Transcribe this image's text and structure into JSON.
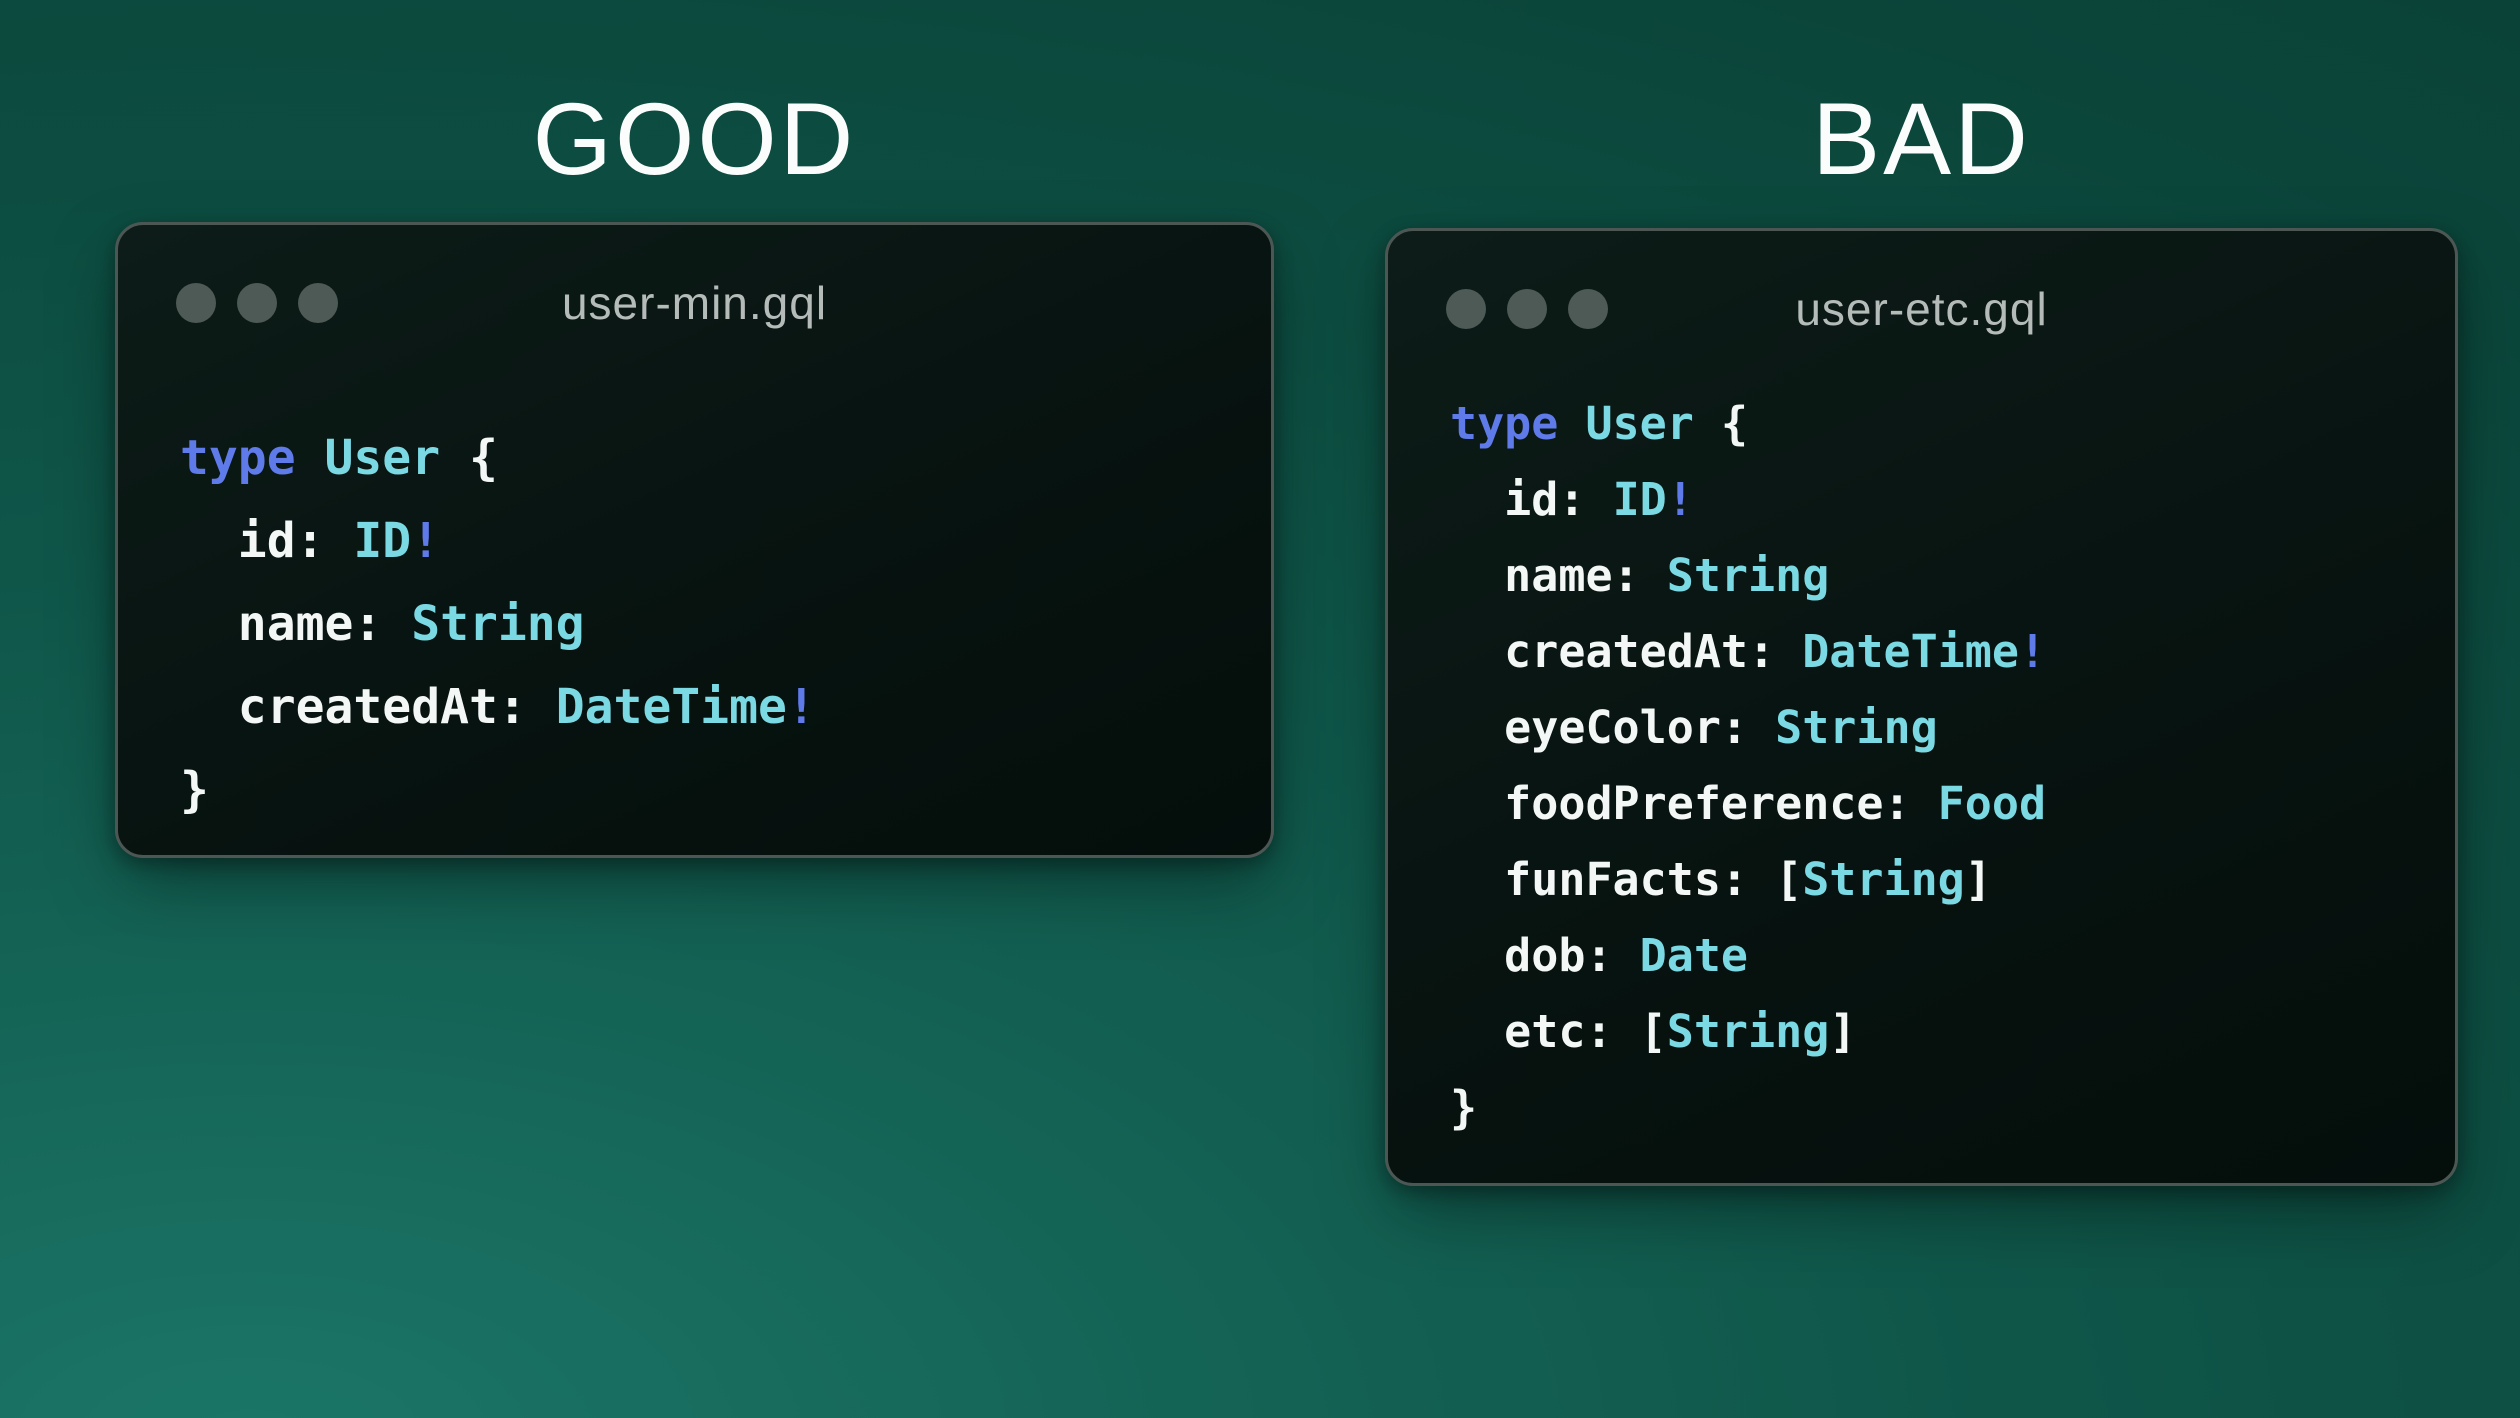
{
  "headings": {
    "good": "GOOD",
    "bad": "BAD"
  },
  "colors": {
    "heading_text": "#fafdfc",
    "window_border": "#4c5754",
    "window_bg": "#081411",
    "title_text": "#b4bbb9",
    "dot": "#4e5a56",
    "keyword": "#5f7ae9",
    "typename": "#7bd9e4",
    "plain": "#f3f7f6",
    "background_bright": "#1b7668",
    "background_dark": "#0a4136"
  },
  "windows": [
    {
      "id": "good",
      "title": "user-min.gql",
      "controls": [
        "window-dot",
        "window-dot",
        "window-dot"
      ],
      "code": [
        [
          {
            "c": "keyword",
            "t": "type"
          },
          {
            "c": "plain",
            "t": " "
          },
          {
            "c": "typename",
            "t": "User"
          },
          {
            "c": "plain",
            "t": " {"
          }
        ],
        [
          {
            "c": "plain",
            "t": "  id: "
          },
          {
            "c": "typename",
            "t": "ID"
          },
          {
            "c": "keyword",
            "t": "!"
          }
        ],
        [
          {
            "c": "plain",
            "t": "  name: "
          },
          {
            "c": "typename",
            "t": "String"
          }
        ],
        [
          {
            "c": "plain",
            "t": "  createdAt: "
          },
          {
            "c": "typename",
            "t": "DateTime"
          },
          {
            "c": "keyword",
            "t": "!"
          }
        ],
        [
          {
            "c": "plain",
            "t": "}"
          }
        ]
      ]
    },
    {
      "id": "bad",
      "title": "user-etc.gql",
      "controls": [
        "window-dot",
        "window-dot",
        "window-dot"
      ],
      "code": [
        [
          {
            "c": "keyword",
            "t": "type"
          },
          {
            "c": "plain",
            "t": " "
          },
          {
            "c": "typename",
            "t": "User"
          },
          {
            "c": "plain",
            "t": " {"
          }
        ],
        [
          {
            "c": "plain",
            "t": "  id: "
          },
          {
            "c": "typename",
            "t": "ID"
          },
          {
            "c": "keyword",
            "t": "!"
          }
        ],
        [
          {
            "c": "plain",
            "t": "  name: "
          },
          {
            "c": "typename",
            "t": "String"
          }
        ],
        [
          {
            "c": "plain",
            "t": "  createdAt: "
          },
          {
            "c": "typename",
            "t": "DateTime"
          },
          {
            "c": "keyword",
            "t": "!"
          }
        ],
        [
          {
            "c": "plain",
            "t": "  eyeColor: "
          },
          {
            "c": "typename",
            "t": "String"
          }
        ],
        [
          {
            "c": "plain",
            "t": "  foodPreference: "
          },
          {
            "c": "typename",
            "t": "Food"
          }
        ],
        [
          {
            "c": "plain",
            "t": "  funFacts: ["
          },
          {
            "c": "typename",
            "t": "String"
          },
          {
            "c": "plain",
            "t": "]"
          }
        ],
        [
          {
            "c": "plain",
            "t": "  dob: "
          },
          {
            "c": "typename",
            "t": "Date"
          }
        ],
        [
          {
            "c": "plain",
            "t": "  etc: ["
          },
          {
            "c": "typename",
            "t": "String"
          },
          {
            "c": "plain",
            "t": "]"
          }
        ],
        [
          {
            "c": "plain",
            "t": "}"
          }
        ]
      ]
    }
  ]
}
